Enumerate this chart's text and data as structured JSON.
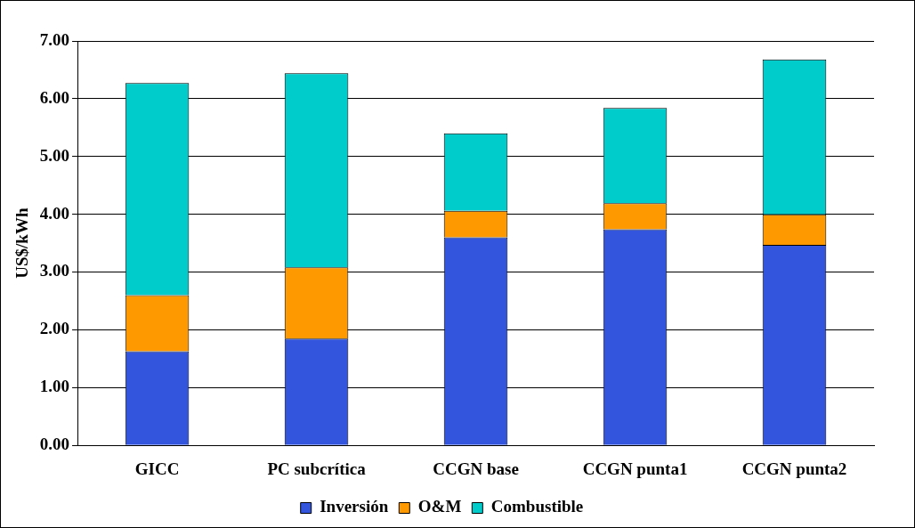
{
  "chart_data": {
    "type": "bar",
    "stacked": true,
    "ylabel": "US$/kWh",
    "categories": [
      "GICC",
      "PC subcrítica",
      "CCGN base",
      "CCGN punta1",
      "CCGN punta2"
    ],
    "series": [
      {
        "name": "Inversión",
        "color": "#3355dd",
        "values": [
          1.63,
          1.85,
          3.6,
          3.74,
          3.47
        ]
      },
      {
        "name": "O&M",
        "color": "#ff9900",
        "values": [
          0.97,
          1.23,
          0.46,
          0.45,
          0.53
        ]
      },
      {
        "name": "Combustible",
        "color": "#00cccc",
        "values": [
          3.67,
          3.36,
          1.34,
          1.65,
          2.68
        ]
      }
    ],
    "ylim": [
      0,
      7
    ],
    "yticks": [
      {
        "value": 0,
        "label": "0.00"
      },
      {
        "value": 1,
        "label": "1.00"
      },
      {
        "value": 2,
        "label": "2.00"
      },
      {
        "value": 3,
        "label": "3.00"
      },
      {
        "value": 4,
        "label": "4.00"
      },
      {
        "value": 5,
        "label": "5.00"
      },
      {
        "value": 6,
        "label": "6.00"
      },
      {
        "value": 7,
        "label": "7.00"
      }
    ],
    "grid": "y",
    "legend": "bottom"
  }
}
